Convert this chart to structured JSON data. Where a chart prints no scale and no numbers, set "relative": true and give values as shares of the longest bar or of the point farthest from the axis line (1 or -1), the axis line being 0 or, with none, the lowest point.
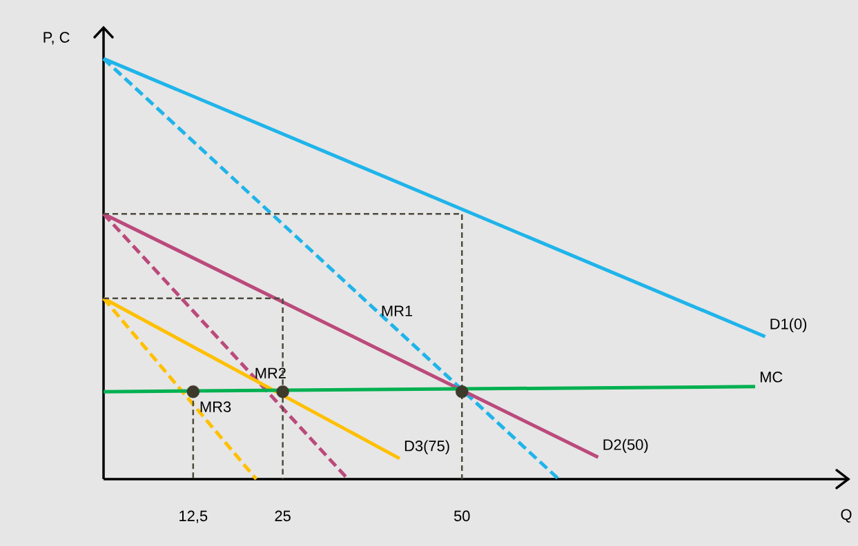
{
  "chart_data": {
    "type": "line",
    "relative": true,
    "xlabel": "Q",
    "ylabel": "P, C",
    "xlim": [
      0,
      104
    ],
    "xticks": [
      {
        "value": 12.5,
        "label": "12,5"
      },
      25,
      50
    ],
    "series": [
      {
        "name": "D1(0)",
        "color": "#1fb4ea",
        "line_style": "solid",
        "x": [
          0,
          92.3
        ],
        "values": [
          1,
          0.339
        ]
      },
      {
        "name": "MR1",
        "color": "#1fb4ea",
        "line_style": "dashed",
        "x": [
          0,
          63.5
        ],
        "values": [
          1,
          0
        ]
      },
      {
        "name": "D2(50)",
        "color": "#bb4a7c",
        "line_style": "solid",
        "x": [
          0,
          69
        ],
        "values": [
          0.631,
          0.052
        ]
      },
      {
        "name": "MR2",
        "color": "#bb4a7c",
        "line_style": "dashed",
        "x": [
          0,
          34.1
        ],
        "values": [
          0.631,
          0
        ]
      },
      {
        "name": "D3(75)",
        "color": "#ffc000",
        "line_style": "solid",
        "x": [
          0,
          41.3
        ],
        "values": [
          0.43,
          0.049
        ]
      },
      {
        "name": "MR3",
        "color": "#ffc000",
        "line_style": "dashed",
        "x": [
          0,
          21.3
        ],
        "values": [
          0.43,
          0
        ]
      },
      {
        "name": "MC",
        "color": "#00b050",
        "line_style": "solid",
        "x": [
          0,
          90.9
        ],
        "values": [
          0.208,
          0.22
        ]
      },
      {
        "color": "#4d4a3c",
        "line_style": "dashed",
        "x": [
          0,
          50,
          50
        ],
        "values": [
          0.631,
          0.631,
          0
        ]
      },
      {
        "color": "#4d4a3c",
        "line_style": "dashed",
        "x": [
          0,
          25,
          25
        ],
        "values": [
          0.43,
          0.43,
          0
        ]
      },
      {
        "color": "#4d4a3c",
        "line_style": "dashed",
        "x": [
          12.5,
          12.5
        ],
        "values": [
          0.208,
          0
        ]
      },
      {
        "type": "scatter",
        "marker": "circle",
        "color": "#3d3a2c",
        "x": [
          12.5,
          25,
          50
        ],
        "values": [
          0.208,
          0.208,
          0.208
        ]
      }
    ]
  }
}
